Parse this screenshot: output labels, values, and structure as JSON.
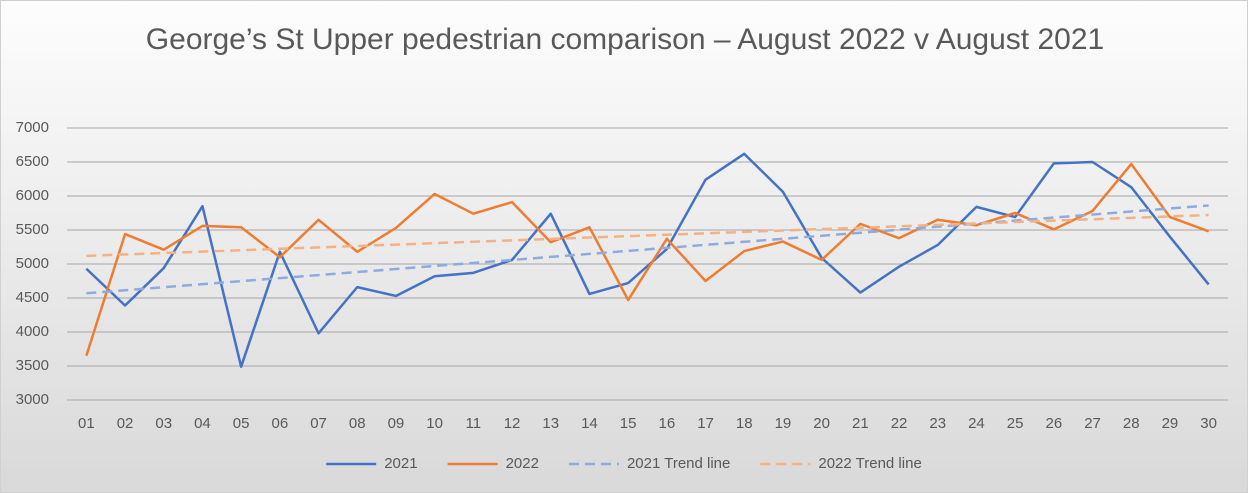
{
  "chart_data": {
    "type": "line",
    "title": "George’s St Upper pedestrian comparison – August 2022 v August 2021",
    "categories": [
      "01",
      "02",
      "03",
      "04",
      "05",
      "06",
      "07",
      "08",
      "09",
      "10",
      "11",
      "12",
      "13",
      "14",
      "15",
      "16",
      "17",
      "18",
      "19",
      "20",
      "21",
      "22",
      "23",
      "24",
      "25",
      "26",
      "27",
      "28",
      "29",
      "30"
    ],
    "series": [
      {
        "name": "2021",
        "color": "#4472c4",
        "dashed": false,
        "values": [
          4930,
          4390,
          4940,
          5850,
          3490,
          5180,
          3980,
          4660,
          4530,
          4820,
          4870,
          5060,
          5740,
          4560,
          4720,
          5220,
          6240,
          6620,
          6060,
          5090,
          4580,
          4960,
          5280,
          5840,
          5690,
          6480,
          6500,
          6130,
          5400,
          4700
        ]
      },
      {
        "name": "2022",
        "color": "#ed7d31",
        "dashed": false,
        "values": [
          3650,
          5440,
          5210,
          5560,
          5540,
          5100,
          5650,
          5180,
          5530,
          6030,
          5740,
          5910,
          5320,
          5540,
          4470,
          5370,
          4750,
          5190,
          5330,
          5060,
          5590,
          5380,
          5650,
          5570,
          5750,
          5510,
          5780,
          6470,
          5690,
          5480
        ]
      },
      {
        "name": "2021 Trend line",
        "color": "#8faadc",
        "dashed": true,
        "values": [
          4570,
          4614.5,
          4659,
          4703.5,
          4748,
          4792.5,
          4837,
          4881.5,
          4926,
          4970.5,
          5015,
          5059.5,
          5104,
          5148.5,
          5193,
          5237.5,
          5282,
          5326.5,
          5371,
          5415.5,
          5460,
          5504.5,
          5549,
          5593.5,
          5638,
          5682.5,
          5727,
          5771.5,
          5816,
          5860.5
        ]
      },
      {
        "name": "2022 Trend line",
        "color": "#f4b183",
        "dashed": true,
        "values": [
          5120,
          5140.7,
          5161.4,
          5182.1,
          5202.8,
          5223.5,
          5244.2,
          5264.9,
          5285.6,
          5306.3,
          5327,
          5347.7,
          5368.4,
          5389.1,
          5409.8,
          5430.5,
          5451.2,
          5471.9,
          5492.6,
          5513.3,
          5534,
          5554.7,
          5575.4,
          5596.1,
          5616.8,
          5637.5,
          5658.2,
          5678.9,
          5699.6,
          5720.3
        ]
      }
    ],
    "ylim": [
      3000,
      7000
    ],
    "yticks": [
      3000,
      3500,
      4000,
      4500,
      5000,
      5500,
      6000,
      6500,
      7000
    ],
    "grid": true,
    "legend": "bottom"
  }
}
